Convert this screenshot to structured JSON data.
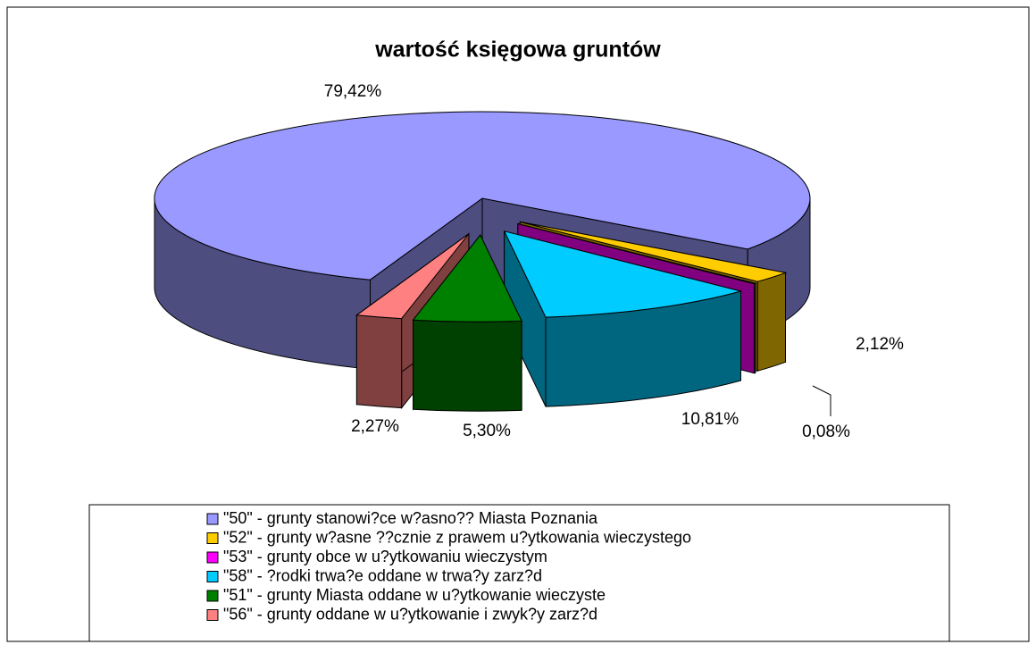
{
  "chart_data": {
    "type": "pie3d",
    "title": "wartość księgowa gruntów",
    "series": [
      {
        "name": "\"50\" - grunty stanowi?ce w?asno?? Miasta Poznania",
        "color": "#9999ff"
      },
      {
        "name": "\"52\" - grunty w?asne ??cznie z prawem u?ytkowania wieczystego",
        "color": "#ffcc00"
      },
      {
        "name": "\"53\" - grunty obce w u?ytkowaniu wieczystym",
        "color": "#ff00ff"
      },
      {
        "name": "\"58\" - ?rodki trwa?e oddane w trwa?y zarz?d",
        "color": "#00ccff"
      },
      {
        "name": "\"51\" - grunty Miasta oddane w u?ytkowanie wieczyste",
        "color": "#008000"
      },
      {
        "name": "\"56\" - grunty oddane w u?ytkowanie i zwyk?y zarz?d",
        "color": "#ff8080"
      }
    ],
    "values": [
      79.42,
      2.12,
      0.08,
      10.81,
      5.3,
      2.27
    ],
    "value_labels": [
      "79,42%",
      "2,12%",
      "0,08%",
      "10,81%",
      "5,30%",
      "2,27%"
    ]
  }
}
